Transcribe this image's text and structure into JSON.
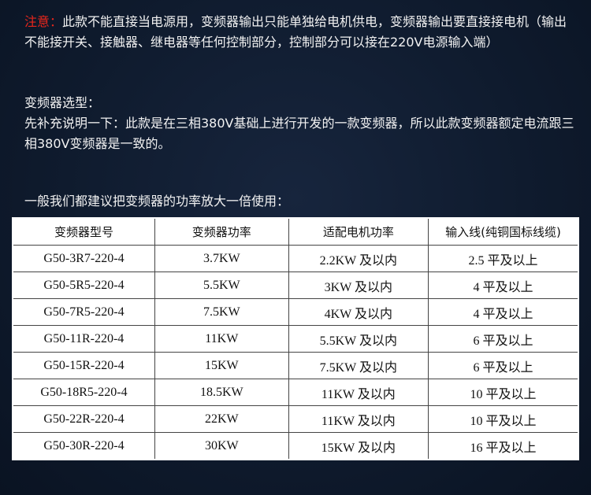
{
  "note": {
    "label": "注意：",
    "text": "此款不能直接当电源用，变频器输出只能单独给电机供电，变频器输出要直接接电机（输出不能接开关、接触器、继电器等任何控制部分，控制部分可以接在220V电源输入端）"
  },
  "selection": {
    "title": "变频器选型：",
    "line": "先补充说明一下：此款是在三相380V基础上进行开发的一款变频器，所以此款变频器额定电流跟三相380V变频器是一致的。"
  },
  "advice": "一般我们都建议把变频器的功率放大一倍使用：",
  "table": {
    "headers": [
      "变频器型号",
      "变频器功率",
      "适配电机功率",
      "输入线(纯铜国标线缆)"
    ],
    "rows": [
      [
        "G50-3R7-220-4",
        "3.7KW",
        "2.2KW 及以内",
        "2.5 平及以上"
      ],
      [
        "G50-5R5-220-4",
        "5.5KW",
        "3KW 及以内",
        "4 平及以上"
      ],
      [
        "G50-7R5-220-4",
        "7.5KW",
        "4KW 及以内",
        "4 平及以上"
      ],
      [
        "G50-11R-220-4",
        "11KW",
        "5.5KW 及以内",
        "6 平及以上"
      ],
      [
        "G50-15R-220-4",
        "15KW",
        "7.5KW 及以内",
        "6 平及以上"
      ],
      [
        "G50-18R5-220-4",
        "18.5KW",
        "11KW 及以内",
        "10 平及以上"
      ],
      [
        "G50-22R-220-4",
        "22KW",
        "11KW 及以内",
        "10 平及以上"
      ],
      [
        "G50-30R-220-4",
        "30KW",
        "15KW 及以内",
        "16 平及以上"
      ]
    ]
  },
  "colors": {
    "warning": "#e8261c",
    "background": "#0f1b2e"
  }
}
